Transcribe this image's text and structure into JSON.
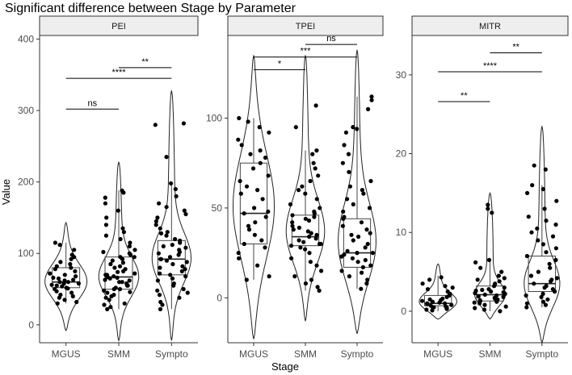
{
  "title": "Significant difference between Stage by Parameter",
  "xlabel": "Stage",
  "ylabel": "Value",
  "colors": {
    "strip": "#eeeeee",
    "strip_border": "#333333",
    "axis": "#333333",
    "point": "#000000",
    "box": "#444444",
    "violin": "#222222"
  },
  "chart_data": [
    {
      "type": "violin",
      "panel": "PEI",
      "categories": [
        "MGUS",
        "SMM",
        "Sympto"
      ],
      "ylim": [
        -25,
        405
      ],
      "yticks": [
        0,
        100,
        200,
        300,
        400
      ],
      "ytick_labels": [
        "0",
        "100",
        "200",
        "300",
        "400"
      ],
      "boxes": [
        {
          "q1": 52,
          "median": 60,
          "q3": 80,
          "whisker_low": 30,
          "whisker_high": 115
        },
        {
          "q1": 50,
          "median": 67,
          "q3": 95,
          "whisker_low": 22,
          "whisker_high": 188
        },
        {
          "q1": 70,
          "median": 92,
          "q3": 118,
          "whisker_low": 22,
          "whisker_high": 198
        }
      ],
      "violins": [
        {
          "min": -8,
          "max": 143,
          "mode": 60,
          "spread": 25
        },
        {
          "min": -22,
          "max": 228,
          "mode": 65,
          "spread": 28
        },
        {
          "min": -22,
          "max": 328,
          "mode": 90,
          "spread": 35
        }
      ],
      "brackets": [
        {
          "from": "SMM",
          "to": "Sympto",
          "y": 360,
          "label": "**"
        },
        {
          "from": "MGUS",
          "to": "Sympto",
          "y": 345,
          "label": "****"
        },
        {
          "from": "MGUS",
          "to": "SMM",
          "y": 302,
          "label": "ns"
        }
      ],
      "points": [
        [
          [
            30,
            32,
            35,
            38,
            40,
            42,
            45,
            47,
            50,
            51,
            52,
            54,
            55,
            56,
            58,
            58,
            60,
            60,
            62,
            63,
            65,
            66,
            68,
            70,
            72,
            75,
            78,
            80,
            82,
            85,
            88,
            92,
            95,
            98,
            105,
            112,
            115
          ]
        ],
        [
          [
            22,
            25,
            28,
            30,
            35,
            38,
            40,
            42,
            45,
            46,
            48,
            50,
            50,
            52,
            55,
            55,
            58,
            60,
            60,
            62,
            63,
            65,
            66,
            67,
            68,
            70,
            70,
            72,
            74,
            75,
            78,
            80,
            82,
            85,
            87,
            90,
            92,
            95,
            95,
            98,
            100,
            102,
            105,
            110,
            115,
            120,
            125,
            130,
            135,
            140,
            150,
            160,
            170,
            178,
            185,
            188
          ]
        ],
        [
          [
            22,
            28,
            32,
            38,
            42,
            45,
            48,
            50,
            55,
            58,
            62,
            65,
            68,
            70,
            72,
            75,
            78,
            80,
            82,
            85,
            88,
            90,
            92,
            92,
            95,
            98,
            100,
            102,
            105,
            108,
            110,
            112,
            115,
            118,
            120,
            125,
            128,
            130,
            135,
            140,
            145,
            150,
            155,
            160,
            165,
            170,
            180,
            190,
            198,
            235,
            280,
            282
          ]
        ]
      ]
    },
    {
      "type": "violin",
      "panel": "TPEI",
      "categories": [
        "MGUS",
        "SMM",
        "Sympto"
      ],
      "ylim": [
        -25,
        146
      ],
      "yticks": [
        0,
        50,
        100
      ],
      "ytick_labels": [
        "0",
        "50",
        "100"
      ],
      "boxes": [
        {
          "q1": 30,
          "median": 47,
          "q3": 75,
          "whisker_low": 10,
          "whisker_high": 100
        },
        {
          "q1": 29,
          "median": 34,
          "q3": 46,
          "whisker_low": 4,
          "whisker_high": 82
        },
        {
          "q1": 17,
          "median": 25,
          "q3": 44,
          "whisker_low": 5,
          "whisker_high": 112
        }
      ],
      "violins": [
        {
          "min": -23,
          "max": 135,
          "mode": 50,
          "spread": 30
        },
        {
          "min": -13,
          "max": 135,
          "mode": 35,
          "spread": 18
        },
        {
          "min": -20,
          "max": 138,
          "mode": 28,
          "spread": 22
        }
      ],
      "brackets": [
        {
          "from": "MGUS",
          "to": "SMM",
          "y": 127,
          "label": "*"
        },
        {
          "from": "MGUS",
          "to": "Sympto",
          "y": 134,
          "label": "***"
        },
        {
          "from": "SMM",
          "to": "Sympto",
          "y": 141,
          "label": "ns"
        }
      ],
      "points": [
        [
          [
            10,
            12,
            18,
            22,
            25,
            28,
            30,
            32,
            35,
            38,
            40,
            42,
            45,
            47,
            48,
            50,
            55,
            58,
            60,
            62,
            65,
            68,
            72,
            75,
            78,
            80,
            82,
            85,
            88,
            92,
            95,
            98,
            100
          ]
        ],
        [
          [
            4,
            6,
            8,
            10,
            12,
            15,
            18,
            20,
            22,
            25,
            27,
            28,
            29,
            30,
            30,
            31,
            32,
            33,
            34,
            35,
            36,
            37,
            38,
            39,
            40,
            42,
            43,
            44,
            45,
            46,
            47,
            48,
            50,
            52,
            55,
            58,
            60,
            62,
            65,
            68,
            72,
            75,
            80,
            82,
            95,
            107
          ]
        ],
        [
          [
            5,
            8,
            10,
            12,
            14,
            15,
            17,
            18,
            20,
            21,
            22,
            23,
            24,
            25,
            25,
            26,
            28,
            30,
            32,
            34,
            35,
            36,
            38,
            40,
            42,
            44,
            45,
            48,
            50,
            52,
            55,
            58,
            60,
            62,
            65,
            70,
            75,
            80,
            85,
            92,
            94,
            95,
            105,
            110,
            112
          ]
        ]
      ]
    },
    {
      "type": "violin",
      "panel": "MITR",
      "categories": [
        "MGUS",
        "SMM",
        "Sympto"
      ],
      "ylim": [
        -4,
        35
      ],
      "yticks": [
        0,
        10,
        20,
        30
      ],
      "ytick_labels": [
        "0",
        "10",
        "20",
        "30"
      ],
      "boxes": [
        {
          "q1": 0.7,
          "median": 1.0,
          "q3": 2.0,
          "whisker_low": 0.0,
          "whisker_high": 4.5
        },
        {
          "q1": 1.3,
          "median": 2.1,
          "q3": 3.2,
          "whisker_low": 0.0,
          "whisker_high": 6.5
        },
        {
          "q1": 2.5,
          "median": 3.5,
          "q3": 7.0,
          "whisker_low": 0.5,
          "whisker_high": 16.0
        }
      ],
      "violins": [
        {
          "min": -1,
          "max": 6,
          "mode": 1.0,
          "spread": 1.2
        },
        {
          "min": -1,
          "max": 15,
          "mode": 1.8,
          "spread": 1.5
        },
        {
          "min": -4,
          "max": 23.5,
          "mode": 3.0,
          "spread": 3.0
        }
      ],
      "brackets": [
        {
          "from": "SMM",
          "to": "Sympto",
          "y": 32.8,
          "label": "**"
        },
        {
          "from": "MGUS",
          "to": "Sympto",
          "y": 30.4,
          "label": "****"
        },
        {
          "from": "MGUS",
          "to": "SMM",
          "y": 26.6,
          "label": "**"
        }
      ],
      "points": [
        [
          [
            0.1,
            0.2,
            0.3,
            0.4,
            0.5,
            0.5,
            0.6,
            0.7,
            0.8,
            0.9,
            1.0,
            1.0,
            1.1,
            1.2,
            1.3,
            1.4,
            1.5,
            1.6,
            1.8,
            2.0,
            2.2,
            2.5,
            2.8,
            3.0,
            3.2,
            3.5,
            4.0,
            4.3
          ]
        ],
        [
          [
            0.0,
            0.2,
            0.4,
            0.6,
            0.8,
            1.0,
            1.1,
            1.2,
            1.3,
            1.4,
            1.5,
            1.6,
            1.7,
            1.8,
            1.9,
            2.0,
            2.1,
            2.2,
            2.3,
            2.4,
            2.5,
            2.6,
            2.7,
            2.8,
            3.0,
            3.2,
            3.4,
            3.5,
            3.8,
            4.0,
            4.2,
            4.5,
            5.0,
            5.5,
            6.2,
            6.5,
            12.5,
            13.0,
            13.5
          ]
        ],
        [
          [
            0.5,
            0.8,
            1.0,
            1.2,
            1.5,
            1.8,
            2.0,
            2.2,
            2.5,
            2.8,
            3.0,
            3.2,
            3.5,
            3.8,
            4.0,
            4.2,
            4.5,
            5.0,
            5.5,
            6.0,
            6.5,
            7.0,
            7.5,
            8.0,
            8.5,
            9.0,
            9.5,
            10.0,
            10.5,
            11.0,
            11.5,
            12.0,
            13.0,
            14.0,
            15.0,
            15.5,
            16.0,
            18.0,
            18.5
          ]
        ]
      ]
    }
  ]
}
